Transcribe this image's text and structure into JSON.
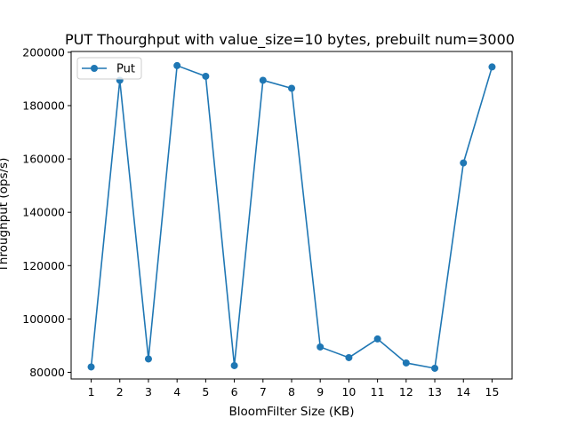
{
  "chart_data": {
    "type": "line",
    "title": "PUT Thourghput with value_size=10 bytes, prebuilt num=3000",
    "xlabel": "BloomFilter Size (KB)",
    "ylabel": "Throughput (ops/s)",
    "x": [
      1,
      2,
      3,
      4,
      5,
      6,
      7,
      8,
      9,
      10,
      11,
      12,
      13,
      14,
      15
    ],
    "series": [
      {
        "name": "Put",
        "color": "#1f77b4",
        "marker": "circle",
        "values": [
          82000,
          189500,
          85000,
          195000,
          191000,
          82500,
          189500,
          186500,
          89500,
          85500,
          92500,
          83500,
          81500,
          158500,
          194500
        ]
      }
    ],
    "xlim": [
      0.3,
      15.7
    ],
    "ylim": [
      77500,
      200300
    ],
    "xticks": [
      1,
      2,
      3,
      4,
      5,
      6,
      7,
      8,
      9,
      10,
      11,
      12,
      13,
      14,
      15
    ],
    "yticks": [
      80000,
      100000,
      120000,
      140000,
      160000,
      180000,
      200000
    ],
    "grid": false,
    "legend_position": "top-left"
  }
}
